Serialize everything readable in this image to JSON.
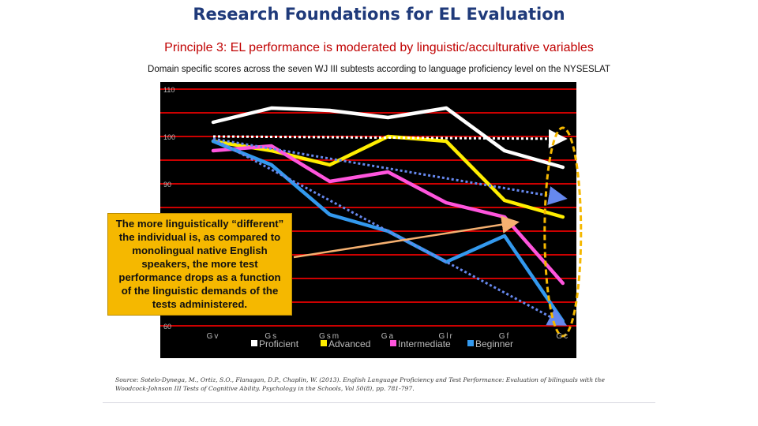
{
  "slide": {
    "title": "Research Foundations for EL Evaluation",
    "subtitle": "Principle 3: EL performance is moderated by linguistic/acculturative variables"
  },
  "callout": {
    "text": "The more linguistically “different” the individual is, as compared to monolingual native English speakers, the more test performance drops as a function of the linguistic demands of the tests administered."
  },
  "source": "Source: Sotelo-Dynega, M., Ortiz, S.O., Flanagan, D.P., Chaplin, W. (2013). English Language Proficiency and Test Performance: Evaluation of bilinguals with the Woodcock-Johnson III Tests of Cognitive Ability. Psychology in the Schools, Vol 50(8), pp. 781-797.",
  "chart_data": {
    "type": "line",
    "title": "Domain specific scores across the seven WJ III subtests according to language proficiency level on the NYSESLAT",
    "categories": [
      "Gv",
      "Gs",
      "Gsm",
      "Ga",
      "Glr",
      "Gf",
      "Gc"
    ],
    "ylim": [
      60,
      110
    ],
    "yticks": [
      110,
      100,
      90,
      60
    ],
    "grid": true,
    "legend_position": "bottom",
    "background": "#000000",
    "gridline_color": "#cc0000",
    "series": [
      {
        "name": "Proficient",
        "color": "#ffffff",
        "values": [
          103,
          106,
          105.5,
          104,
          106,
          97,
          93.5
        ]
      },
      {
        "name": "Advanced",
        "color": "#ffee00",
        "values": [
          99,
          97,
          94,
          100,
          99,
          86.5,
          83
        ]
      },
      {
        "name": "Intermediate",
        "color": "#ff55dd",
        "values": [
          97,
          98,
          90.5,
          92.5,
          86,
          83,
          69
        ]
      },
      {
        "name": "Beginner",
        "color": "#3399ee",
        "values": [
          99,
          94,
          83.5,
          80,
          73.5,
          79,
          61
        ]
      }
    ],
    "trend_lines": [
      {
        "color": "#ffffff",
        "from": {
          "x": "Gv",
          "y": 100
        },
        "to": {
          "x": "Gc",
          "y": 99.5
        }
      },
      {
        "color": "#6688ee",
        "from": {
          "x": "Gv",
          "y": 99.5
        },
        "to": {
          "x": "Gc",
          "y": 87
        }
      },
      {
        "color": "#6688ee",
        "from": {
          "x": "Gv",
          "y": 99.5
        },
        "to": {
          "x": "Gc",
          "y": 60.5
        }
      }
    ],
    "highlight_category": "Gc",
    "highlight_color": "#f5b800",
    "callout_arrow_color": "#f5b070",
    "callout_arrow_target": {
      "x": "Gf",
      "y": 81.5
    }
  }
}
